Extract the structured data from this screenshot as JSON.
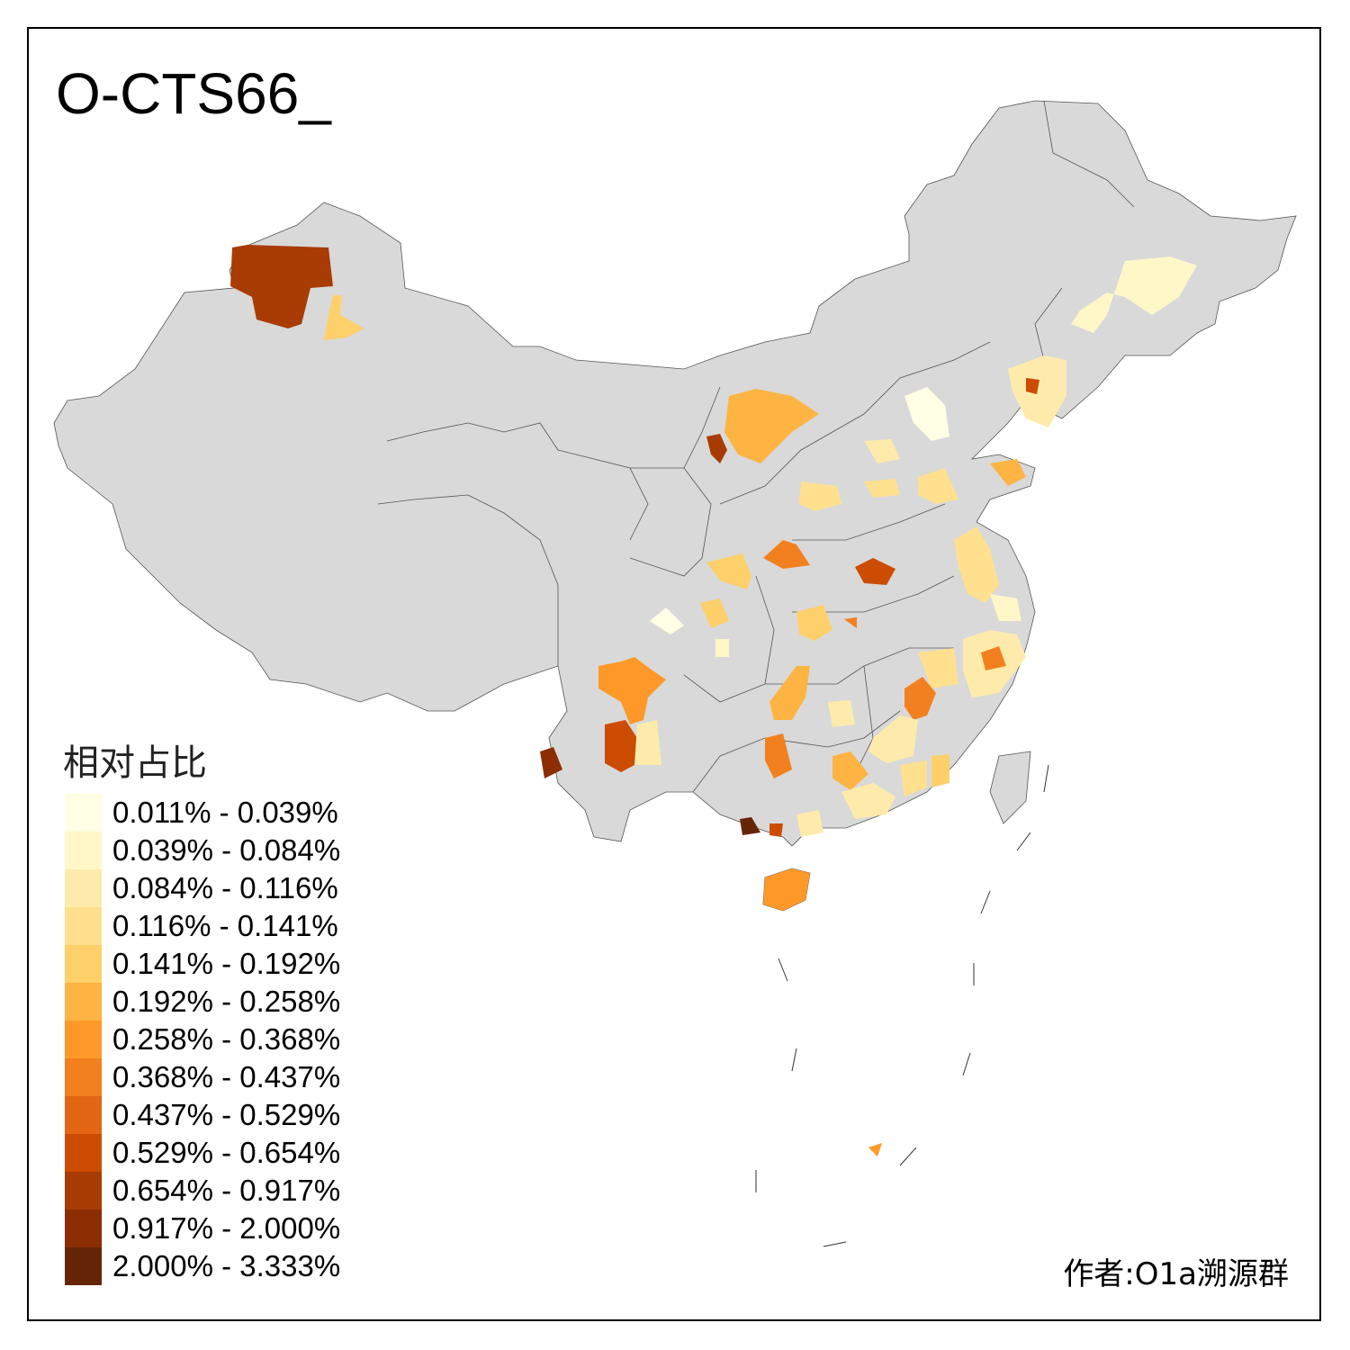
{
  "title": "O-CTS66_",
  "legend": {
    "title": "相对占比",
    "items": [
      {
        "label": "0.011% - 0.039%",
        "color": "#FFFFE5"
      },
      {
        "label": "0.039% - 0.084%",
        "color": "#FFF7C8"
      },
      {
        "label": "0.084% - 0.116%",
        "color": "#FEEBAB"
      },
      {
        "label": "0.116% - 0.141%",
        "color": "#FEE08F"
      },
      {
        "label": "0.141% - 0.192%",
        "color": "#FED06A"
      },
      {
        "label": "0.192% - 0.258%",
        "color": "#FEB442"
      },
      {
        "label": "0.258% - 0.368%",
        "color": "#FE9929"
      },
      {
        "label": "0.368% - 0.437%",
        "color": "#F2801F"
      },
      {
        "label": "0.437% - 0.529%",
        "color": "#E26613"
      },
      {
        "label": "0.529% - 0.654%",
        "color": "#CC4C02"
      },
      {
        "label": "0.654% - 0.917%",
        "color": "#A83C04"
      },
      {
        "label": "0.917% - 2.000%",
        "color": "#8C2D04"
      },
      {
        "label": "2.000% - 3.333%",
        "color": "#662506"
      }
    ]
  },
  "base_color": "#D9D9D9",
  "credit": "作者:O1a溯源群"
}
